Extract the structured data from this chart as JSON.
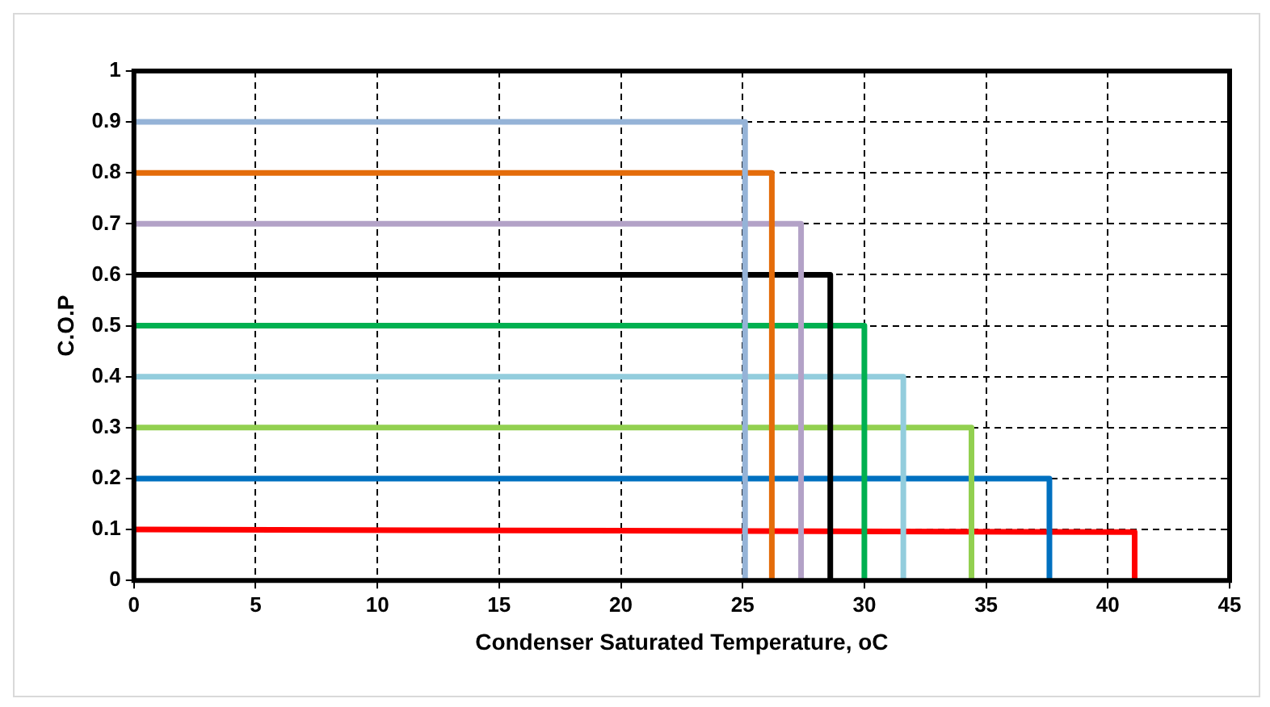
{
  "chart_data": {
    "type": "line",
    "xlabel": "Condenser Saturated Temperature, oC",
    "ylabel": "C.O.P",
    "xlim": [
      0,
      45
    ],
    "xticks": [
      0,
      5,
      10,
      15,
      20,
      25,
      30,
      35,
      40,
      45
    ],
    "ylim": [
      0,
      1
    ],
    "yticks": [
      0,
      0.1,
      0.2,
      0.3,
      0.4,
      0.5,
      0.6,
      0.7,
      0.8,
      0.9,
      1
    ],
    "grid": true,
    "legend": false,
    "marker": "none",
    "line_style": "solid",
    "series": [
      {
        "color": "#95b3d7",
        "x": [
          0,
          25.1,
          25.1
        ],
        "values": [
          0.9,
          0.9,
          0
        ]
      },
      {
        "color": "#e46c0a",
        "x": [
          0,
          26.2,
          26.2
        ],
        "values": [
          0.8,
          0.8,
          0
        ]
      },
      {
        "color": "#b3a2c7",
        "x": [
          0,
          27.4,
          27.4
        ],
        "values": [
          0.7,
          0.7,
          0
        ]
      },
      {
        "color": "#000000",
        "x": [
          0,
          28.6,
          28.6
        ],
        "values": [
          0.6,
          0.6,
          0
        ]
      },
      {
        "color": "#00b050",
        "x": [
          0,
          30,
          30
        ],
        "values": [
          0.5,
          0.5,
          0
        ]
      },
      {
        "color": "#93cddd",
        "x": [
          0,
          31.6,
          31.6
        ],
        "values": [
          0.4,
          0.4,
          0
        ]
      },
      {
        "color": "#92d050",
        "x": [
          0,
          34.4,
          34.4
        ],
        "values": [
          0.3,
          0.3,
          0
        ]
      },
      {
        "color": "#0070c0",
        "x": [
          0,
          37.6,
          37.6
        ],
        "values": [
          0.2,
          0.2,
          0
        ]
      },
      {
        "color": "#ff0000",
        "x": [
          0,
          41.1,
          41.1
        ],
        "values": [
          0.1,
          0.095,
          0
        ]
      }
    ]
  }
}
